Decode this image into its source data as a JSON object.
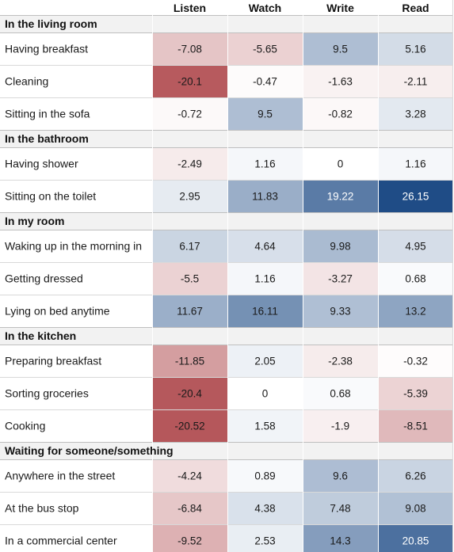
{
  "chart_data": {
    "type": "heatmap",
    "columns": [
      "Listen",
      "Watch",
      "Write",
      "Read"
    ],
    "groups": [
      {
        "title": "In the living room",
        "rows": [
          {
            "label": "Having breakfast",
            "values": [
              -7.08,
              -5.65,
              9.5,
              5.16
            ],
            "text": [
              "-7.08",
              "-5.65",
              "9.5",
              "5.16"
            ]
          },
          {
            "label": "Cleaning",
            "values": [
              -20.1,
              -0.47,
              -1.63,
              -2.11
            ],
            "text": [
              "-20.1",
              "-0.47",
              "-1.63",
              "-2.11"
            ]
          },
          {
            "label": "Sitting in the sofa",
            "values": [
              -0.72,
              9.5,
              -0.82,
              3.28
            ],
            "text": [
              "-0.72",
              "9.5",
              "-0.82",
              "3.28"
            ]
          }
        ]
      },
      {
        "title": "In the bathroom",
        "rows": [
          {
            "label": "Having shower",
            "values": [
              -2.49,
              1.16,
              0,
              1.16
            ],
            "text": [
              "-2.49",
              "1.16",
              "0",
              "1.16"
            ]
          },
          {
            "label": "Sitting on the toilet",
            "values": [
              2.95,
              11.83,
              19.22,
              26.15
            ],
            "text": [
              "2.95",
              "11.83",
              "19.22",
              "26.15"
            ]
          }
        ]
      },
      {
        "title": "In my room",
        "rows": [
          {
            "label": "Waking up in the morning in",
            "values": [
              6.17,
              4.64,
              9.98,
              4.95
            ],
            "text": [
              "6.17",
              "4.64",
              "9.98",
              "4.95"
            ]
          },
          {
            "label": "Getting dressed",
            "values": [
              -5.5,
              1.16,
              -3.27,
              0.68
            ],
            "text": [
              "-5.5",
              "1.16",
              "-3.27",
              "0.68"
            ]
          },
          {
            "label": "Lying on bed anytime",
            "values": [
              11.67,
              16.11,
              9.33,
              13.2
            ],
            "text": [
              "11.67",
              "16.11",
              "9.33",
              "13.2"
            ]
          }
        ]
      },
      {
        "title": "In the kitchen",
        "rows": [
          {
            "label": "Preparing breakfast",
            "values": [
              -11.85,
              2.05,
              -2.38,
              -0.32
            ],
            "text": [
              "-11.85",
              "2.05",
              "-2.38",
              "-0.32"
            ]
          },
          {
            "label": "Sorting groceries",
            "values": [
              -20.4,
              0,
              0.68,
              -5.39
            ],
            "text": [
              "-20.4",
              "0",
              "0.68",
              "-5.39"
            ]
          },
          {
            "label": "Cooking",
            "values": [
              -20.52,
              1.58,
              -1.9,
              -8.51
            ],
            "text": [
              "-20.52",
              "1.58",
              "-1.9",
              "-8.51"
            ]
          }
        ]
      },
      {
        "title": "Waiting for someone/something",
        "rows": [
          {
            "label": "Anywhere in the street",
            "values": [
              -4.24,
              0.89,
              9.6,
              6.26
            ],
            "text": [
              "-4.24",
              "0.89",
              "9.6",
              "6.26"
            ]
          },
          {
            "label": "At the bus stop",
            "values": [
              -6.84,
              4.38,
              7.48,
              9.08
            ],
            "text": [
              "-6.84",
              "4.38",
              "7.48",
              "9.08"
            ]
          },
          {
            "label": "In a commercial center",
            "values": [
              -9.52,
              2.53,
              14.3,
              20.85
            ],
            "text": [
              "-9.52",
              "2.53",
              "14.3",
              "20.85"
            ]
          }
        ]
      }
    ],
    "color_scale": {
      "negative_color": "#b5575b",
      "neutral_color": "#ffffff",
      "positive_color": "#1f4c86",
      "negative_extreme": -20.52,
      "positive_extreme": 26.15
    },
    "grid": true,
    "legend": "none"
  }
}
